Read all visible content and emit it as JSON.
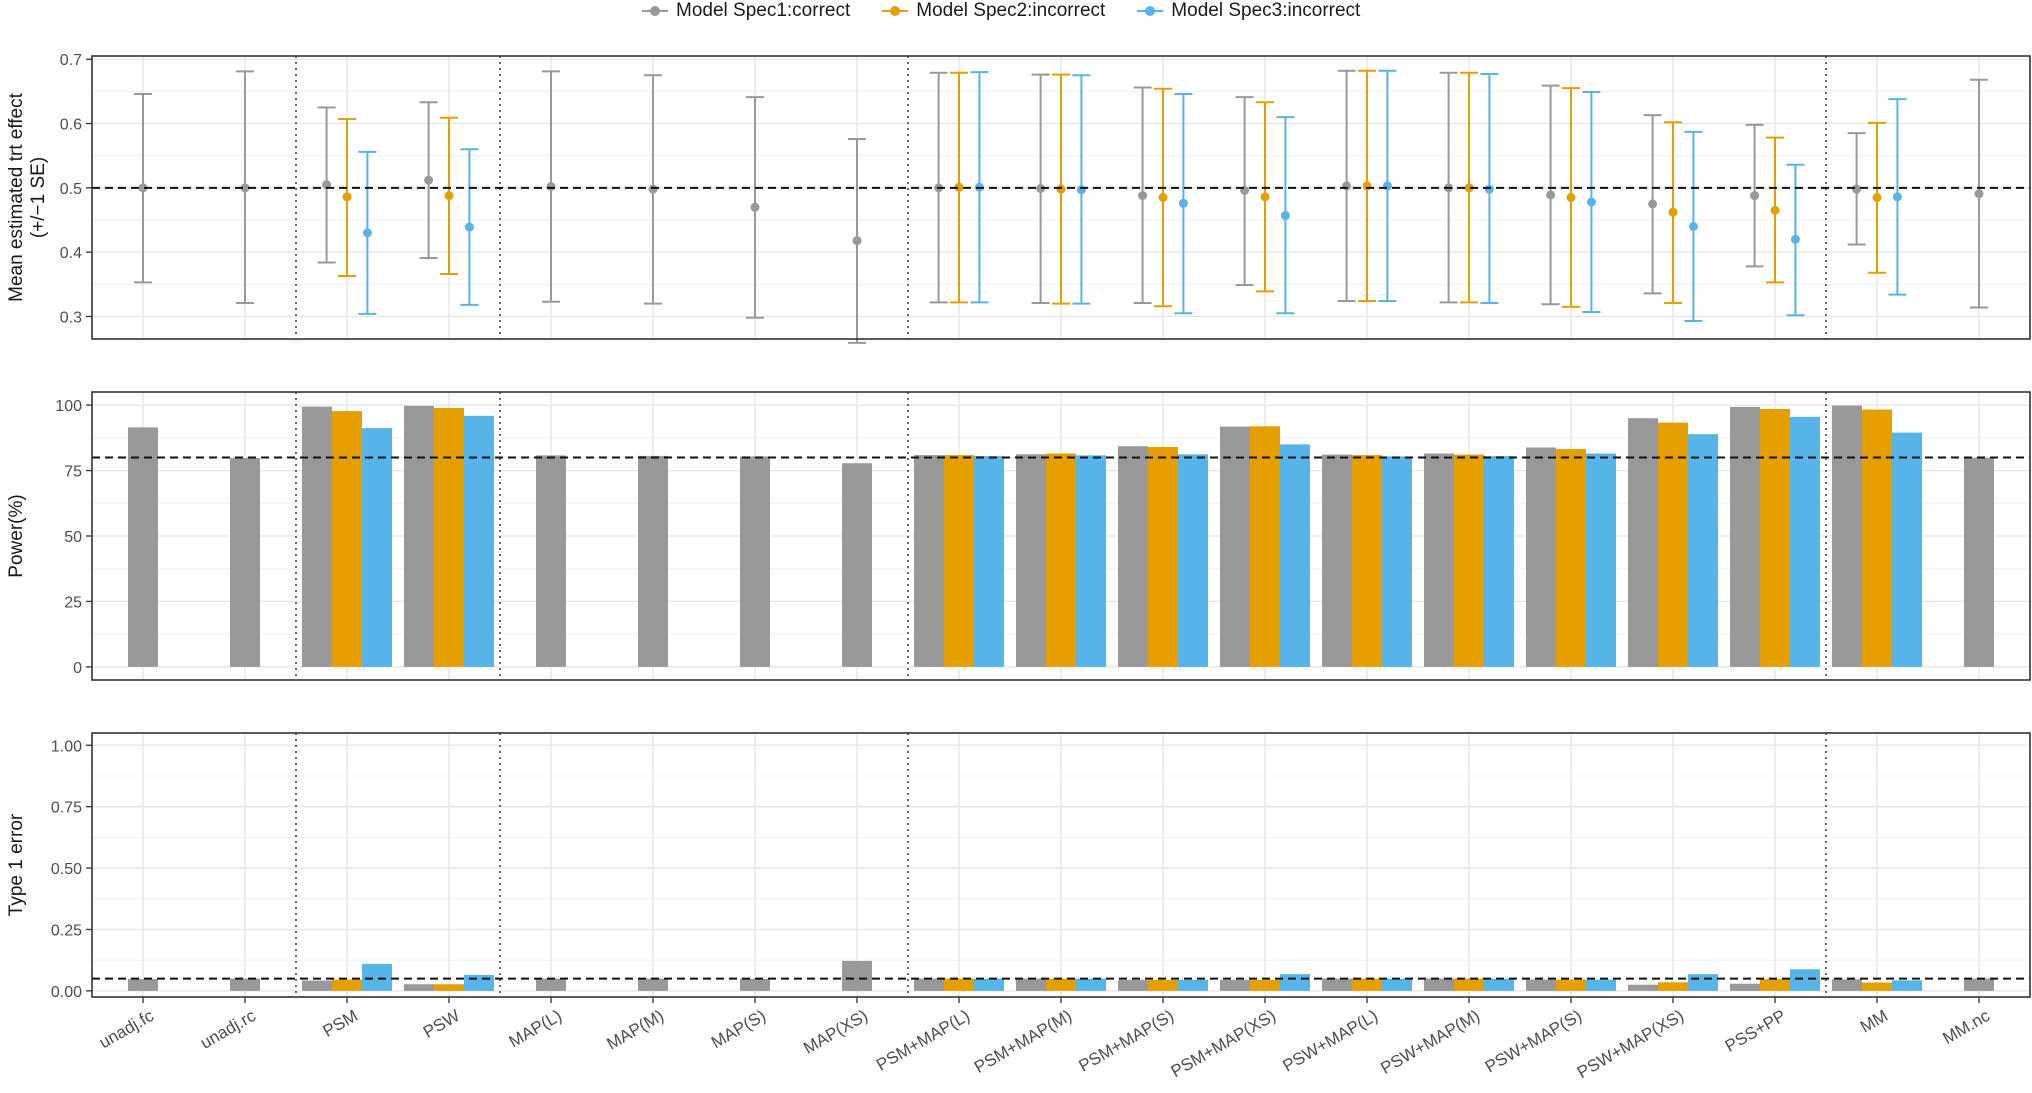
{
  "legend": {
    "items": [
      {
        "label": "Model Spec1:correct",
        "color": "#999999"
      },
      {
        "label": "Model Spec2:incorrect",
        "color": "#E69F00"
      },
      {
        "label": "Model Spec3:incorrect",
        "color": "#56B4E9"
      }
    ]
  },
  "chart_data": [
    {
      "type": "scatter",
      "subtype": "point-with-errorbars",
      "ylabel_lines": [
        "Mean estimated trt effect",
        "(+/−1 SE)"
      ],
      "ylim": [
        0.265,
        0.705
      ],
      "yticks": [
        0.3,
        0.4,
        0.5,
        0.6,
        0.7
      ],
      "ytick_labels": [
        "0.3",
        "0.4",
        "0.5",
        "0.6",
        "0.7"
      ],
      "reference_line": 0.5,
      "grid": true,
      "categories": [
        "unadj.fc",
        "unadj.rc",
        "PSM",
        "PSW",
        "MAP(L)",
        "MAP(M)",
        "MAP(S)",
        "MAP(XS)",
        "PSM+MAP(L)",
        "PSM+MAP(M)",
        "PSM+MAP(S)",
        "PSM+MAP(XS)",
        "PSW+MAP(L)",
        "PSW+MAP(M)",
        "PSW+MAP(S)",
        "PSW+MAP(XS)",
        "PSS+PP",
        "MM",
        "MM.nc"
      ],
      "separators_after": [
        "unadj.rc",
        "PSW",
        "MAP(XS)",
        "PSS+PP"
      ],
      "series": [
        {
          "name": "Model Spec1:correct",
          "color": "#999999",
          "points": [
            [
              0.5,
              0.353,
              0.646
            ],
            [
              0.5,
              0.321,
              0.681
            ],
            [
              0.505,
              0.384,
              0.625
            ],
            [
              0.512,
              0.391,
              0.633
            ],
            [
              0.502,
              0.323,
              0.681
            ],
            [
              0.498,
              0.32,
              0.675
            ],
            [
              0.47,
              0.298,
              0.641
            ],
            [
              0.418,
              0.259,
              0.576
            ],
            [
              0.5,
              0.322,
              0.679
            ],
            [
              0.499,
              0.321,
              0.676
            ],
            [
              0.488,
              0.321,
              0.656
            ],
            [
              0.496,
              0.349,
              0.641
            ],
            [
              0.503,
              0.324,
              0.682
            ],
            [
              0.5,
              0.322,
              0.679
            ],
            [
              0.489,
              0.319,
              0.659
            ],
            [
              0.475,
              0.336,
              0.613
            ],
            [
              0.488,
              0.378,
              0.598
            ],
            [
              0.498,
              0.412,
              0.585
            ],
            [
              0.491,
              0.314,
              0.668
            ]
          ]
        },
        {
          "name": "Model Spec2:incorrect",
          "color": "#E69F00",
          "points": [
            null,
            null,
            [
              0.486,
              0.363,
              0.607
            ],
            [
              0.488,
              0.366,
              0.609
            ],
            null,
            null,
            null,
            null,
            [
              0.501,
              0.322,
              0.679
            ],
            [
              0.498,
              0.32,
              0.676
            ],
            [
              0.485,
              0.316,
              0.654
            ],
            [
              0.486,
              0.339,
              0.633
            ],
            [
              0.503,
              0.324,
              0.682
            ],
            [
              0.5,
              0.322,
              0.679
            ],
            [
              0.485,
              0.315,
              0.655
            ],
            [
              0.462,
              0.321,
              0.602
            ],
            [
              0.465,
              0.353,
              0.578
            ],
            [
              0.485,
              0.368,
              0.601
            ],
            null
          ]
        },
        {
          "name": "Model Spec3:incorrect",
          "color": "#56B4E9",
          "points": [
            null,
            null,
            [
              0.43,
              0.304,
              0.556
            ],
            [
              0.439,
              0.318,
              0.56
            ],
            null,
            null,
            null,
            null,
            [
              0.501,
              0.322,
              0.68
            ],
            [
              0.497,
              0.32,
              0.675
            ],
            [
              0.476,
              0.305,
              0.646
            ],
            [
              0.457,
              0.305,
              0.61
            ],
            [
              0.503,
              0.324,
              0.682
            ],
            [
              0.498,
              0.321,
              0.677
            ],
            [
              0.478,
              0.307,
              0.649
            ],
            [
              0.44,
              0.293,
              0.587
            ],
            [
              0.42,
              0.302,
              0.536
            ],
            [
              0.486,
              0.334,
              0.638
            ],
            null
          ]
        }
      ]
    },
    {
      "type": "bar",
      "ylabel_lines": [
        "Power(%)"
      ],
      "ylim": [
        -5,
        105
      ],
      "yticks": [
        0,
        25,
        50,
        75,
        100
      ],
      "ytick_labels": [
        "0",
        "25",
        "50",
        "75",
        "100"
      ],
      "reference_line": 80,
      "grid": true,
      "categories": [
        "unadj.fc",
        "unadj.rc",
        "PSM",
        "PSW",
        "MAP(L)",
        "MAP(M)",
        "MAP(S)",
        "MAP(XS)",
        "PSM+MAP(L)",
        "PSM+MAP(M)",
        "PSM+MAP(S)",
        "PSM+MAP(XS)",
        "PSW+MAP(L)",
        "PSW+MAP(M)",
        "PSW+MAP(S)",
        "PSW+MAP(XS)",
        "PSS+PP",
        "MM",
        "MM.nc"
      ],
      "separators_after": [
        "unadj.rc",
        "PSW",
        "MAP(XS)",
        "PSS+PP"
      ],
      "series": [
        {
          "name": "Model Spec1:correct",
          "color": "#999999",
          "values": [
            91.5,
            79.8,
            99.4,
            99.7,
            80.8,
            80.6,
            80.4,
            77.8,
            80.9,
            81.2,
            84.3,
            91.8,
            81.1,
            81.5,
            83.8,
            95.0,
            99.3,
            99.8,
            79.9
          ]
        },
        {
          "name": "Model Spec2:incorrect",
          "color": "#E69F00",
          "values": [
            null,
            null,
            97.7,
            98.9,
            null,
            null,
            null,
            null,
            80.9,
            81.5,
            84.0,
            91.9,
            80.9,
            81.1,
            83.2,
            93.3,
            98.5,
            98.3,
            null
          ]
        },
        {
          "name": "Model Spec3:incorrect",
          "color": "#56B4E9",
          "values": [
            null,
            null,
            91.2,
            95.9,
            null,
            null,
            null,
            null,
            80.5,
            80.8,
            81.2,
            85.0,
            80.4,
            80.5,
            81.5,
            88.9,
            95.5,
            89.5,
            null
          ]
        }
      ]
    },
    {
      "type": "bar",
      "ylabel_lines": [
        "Type 1 error"
      ],
      "ylim": [
        -0.025,
        1.05
      ],
      "yticks": [
        0.0,
        0.25,
        0.5,
        0.75,
        1.0
      ],
      "ytick_labels": [
        "0.00",
        "0.25",
        "0.50",
        "0.75",
        "1.00"
      ],
      "reference_line": 0.05,
      "grid": true,
      "categories": [
        "unadj.fc",
        "unadj.rc",
        "PSM",
        "PSW",
        "MAP(L)",
        "MAP(M)",
        "MAP(S)",
        "MAP(XS)",
        "PSM+MAP(L)",
        "PSM+MAP(M)",
        "PSM+MAP(S)",
        "PSM+MAP(XS)",
        "PSW+MAP(L)",
        "PSW+MAP(M)",
        "PSW+MAP(S)",
        "PSW+MAP(XS)",
        "PSS+PP",
        "MM",
        "MM.nc"
      ],
      "separators_after": [
        "unadj.rc",
        "PSW",
        "MAP(XS)",
        "PSS+PP"
      ],
      "series": [
        {
          "name": "Model Spec1:correct",
          "color": "#999999",
          "values": [
            0.048,
            0.05,
            0.042,
            0.027,
            0.05,
            0.05,
            0.049,
            0.122,
            0.05,
            0.05,
            0.045,
            0.045,
            0.05,
            0.05,
            0.046,
            0.025,
            0.029,
            0.047,
            0.05
          ]
        },
        {
          "name": "Model Spec2:incorrect",
          "color": "#E69F00",
          "values": [
            null,
            null,
            0.046,
            0.027,
            null,
            null,
            null,
            null,
            0.05,
            0.05,
            0.045,
            0.045,
            0.05,
            0.05,
            0.046,
            0.035,
            0.048,
            0.034,
            null
          ]
        },
        {
          "name": "Model Spec3:incorrect",
          "color": "#56B4E9",
          "values": [
            null,
            null,
            0.11,
            0.065,
            null,
            null,
            null,
            null,
            0.05,
            0.05,
            0.045,
            0.068,
            0.05,
            0.05,
            0.046,
            0.068,
            0.088,
            0.043,
            null
          ]
        }
      ]
    }
  ]
}
